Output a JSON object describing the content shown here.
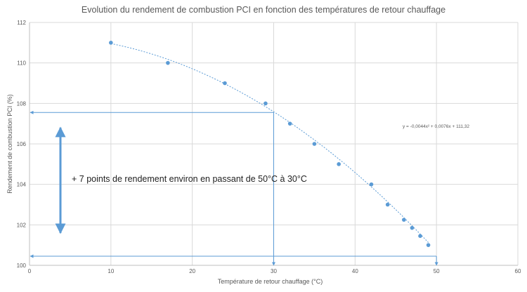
{
  "chart_data": {
    "type": "scatter",
    "title": "Evolution du rendement de combustion PCI en fonction des températures de retour chauffage",
    "xlabel": "Température de retour chauffage (°C)",
    "ylabel": "Rendement de combustion PCI  (%)",
    "xlim": [
      0,
      60
    ],
    "ylim": [
      100,
      112
    ],
    "x_ticks": [
      0,
      10,
      20,
      30,
      40,
      50,
      60
    ],
    "y_ticks": [
      100,
      102,
      104,
      106,
      108,
      110,
      112
    ],
    "grid": true,
    "series": [
      {
        "x": [
          10,
          17,
          24,
          29,
          32,
          35,
          38,
          42,
          44,
          46,
          47,
          48,
          49
        ],
        "y": [
          111,
          110,
          109,
          108,
          107,
          106,
          105,
          104,
          103,
          102.25,
          101.85,
          101.45,
          101.0
        ]
      }
    ],
    "trendline": {
      "type": "polynomial",
      "a": -0.0044,
      "b": 0.0076,
      "c": 111.32,
      "x_range": [
        10,
        49
      ],
      "equation_label": "y = -0,0044x² + 0,0076x + 111,32"
    },
    "reference_lines": [
      {
        "x": 30,
        "y": 107.55
      },
      {
        "x": 50,
        "y": 100.45
      }
    ],
    "annotation_arrow_range": [
      101.6,
      106.8
    ],
    "annotation": "+ 7 points de rendement environ en passant de 50°C à 30°C",
    "colors": {
      "point": "#5b9bd5",
      "trend": "#5b9bd5",
      "reference": "#5b9bd5",
      "arrow": "#5b9bd5",
      "grid": "#d9d9d9",
      "axis": "#bfbfbf",
      "text": "#595959"
    }
  }
}
